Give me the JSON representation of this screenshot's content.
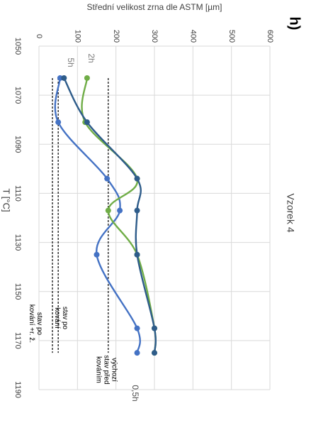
{
  "panel_letter": "h)",
  "chart_data": {
    "type": "line",
    "title": "Vzorek 4",
    "xlabel": "T [°C]",
    "ylabel": "Střední velikost zrna dle ASTM [µm]",
    "xlim": [
      1050,
      1190
    ],
    "ylim": [
      0,
      600
    ],
    "x_ticks": [
      1050,
      1070,
      1090,
      1110,
      1130,
      1150,
      1170,
      1190
    ],
    "y_ticks": [
      0,
      100,
      200,
      300,
      400,
      500,
      600
    ],
    "grid": true,
    "series": [
      {
        "name": "0,5h",
        "color": "#4472c4",
        "points": [
          [
            1063,
            55
          ],
          [
            1081,
            50
          ],
          [
            1104,
            177
          ],
          [
            1117,
            210
          ],
          [
            1135,
            150
          ],
          [
            1165,
            255
          ],
          [
            1175,
            255
          ]
        ]
      },
      {
        "name": "2h",
        "color": "#70ad47",
        "points": [
          [
            1063,
            125
          ],
          [
            1081,
            120
          ],
          [
            1104,
            255
          ],
          [
            1117,
            180
          ],
          [
            1135,
            255
          ],
          [
            1165,
            300
          ],
          [
            1175,
            300
          ]
        ]
      },
      {
        "name": "5h",
        "color": "#2e5c8a",
        "points": [
          [
            1063,
            65
          ],
          [
            1081,
            125
          ],
          [
            1104,
            255
          ],
          [
            1117,
            255
          ],
          [
            1135,
            255
          ],
          [
            1165,
            300
          ],
          [
            1175,
            300
          ]
        ]
      }
    ],
    "reference_lines": [
      {
        "label": "stav po kování +r. ž.",
        "y": 35
      },
      {
        "label": "stav po kování",
        "y": 50
      },
      {
        "label": "výchozí stav před kováním",
        "y": 180
      }
    ],
    "series_labels": [
      {
        "text": "2h",
        "series": "2h"
      },
      {
        "text": "5h",
        "series": "5h"
      },
      {
        "text": "0,5h",
        "series": "0,5h"
      }
    ]
  }
}
